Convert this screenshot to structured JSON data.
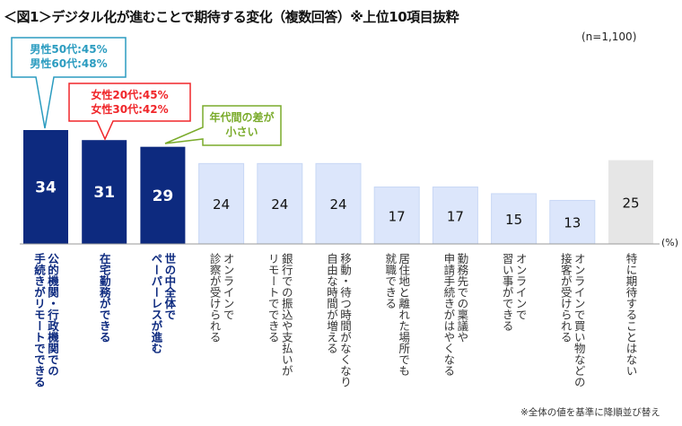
{
  "title": "＜図1＞デジタル化が進むことで期待する変化（複数回答）※上位10項目抜粋",
  "sample": "(n=1,100)",
  "footnote": "※全体の値を基準に降順並び替え",
  "chart_data": {
    "type": "bar",
    "title": "＜図1＞デジタル化が進むことで期待する変化（複数回答）※上位10項目抜粋",
    "ylabel": "(%)",
    "ylim": [
      0,
      34
    ],
    "grid": false,
    "categories": [
      "公的機関・行政機関での\n手続きがリモートでできる",
      "在宅勤務ができる",
      "世の中全体で\nペーパーレスが進む",
      "オンラインで\n診察が受けられる",
      "銀行での振込や支払いが\nリモートでできる",
      "移動・待つ時間がなくなり\n自由な時間が増える",
      "居住地と離れた場所でも\n就職できる",
      "勤務先での稟議や\n申請手続きがはやくなる",
      "オンラインで\n習い事ができる",
      "オンラインで買い物などの\n接客が受けられる",
      "特に期待することはない"
    ],
    "values": [
      34,
      31,
      29,
      24,
      24,
      24,
      17,
      17,
      15,
      13,
      25
    ],
    "bar_styles": [
      "highlight",
      "highlight",
      "highlight",
      "normal",
      "normal",
      "normal",
      "normal",
      "normal",
      "normal",
      "normal",
      "none"
    ],
    "colors": {
      "highlight": "#0d2a7f",
      "normal": "#dce6fb",
      "none": "#e6e6e6"
    },
    "annotations": [
      {
        "text": "男性50代:45%\n男性60代:48%",
        "target": 0,
        "color": "#2b9cc0"
      },
      {
        "text": "女性20代:45%\n女性30代:42%",
        "target": 1,
        "color": "#f0262a"
      },
      {
        "text": "年代間の差が\n小さい",
        "target": 2,
        "color": "#7aab2b"
      }
    ]
  }
}
